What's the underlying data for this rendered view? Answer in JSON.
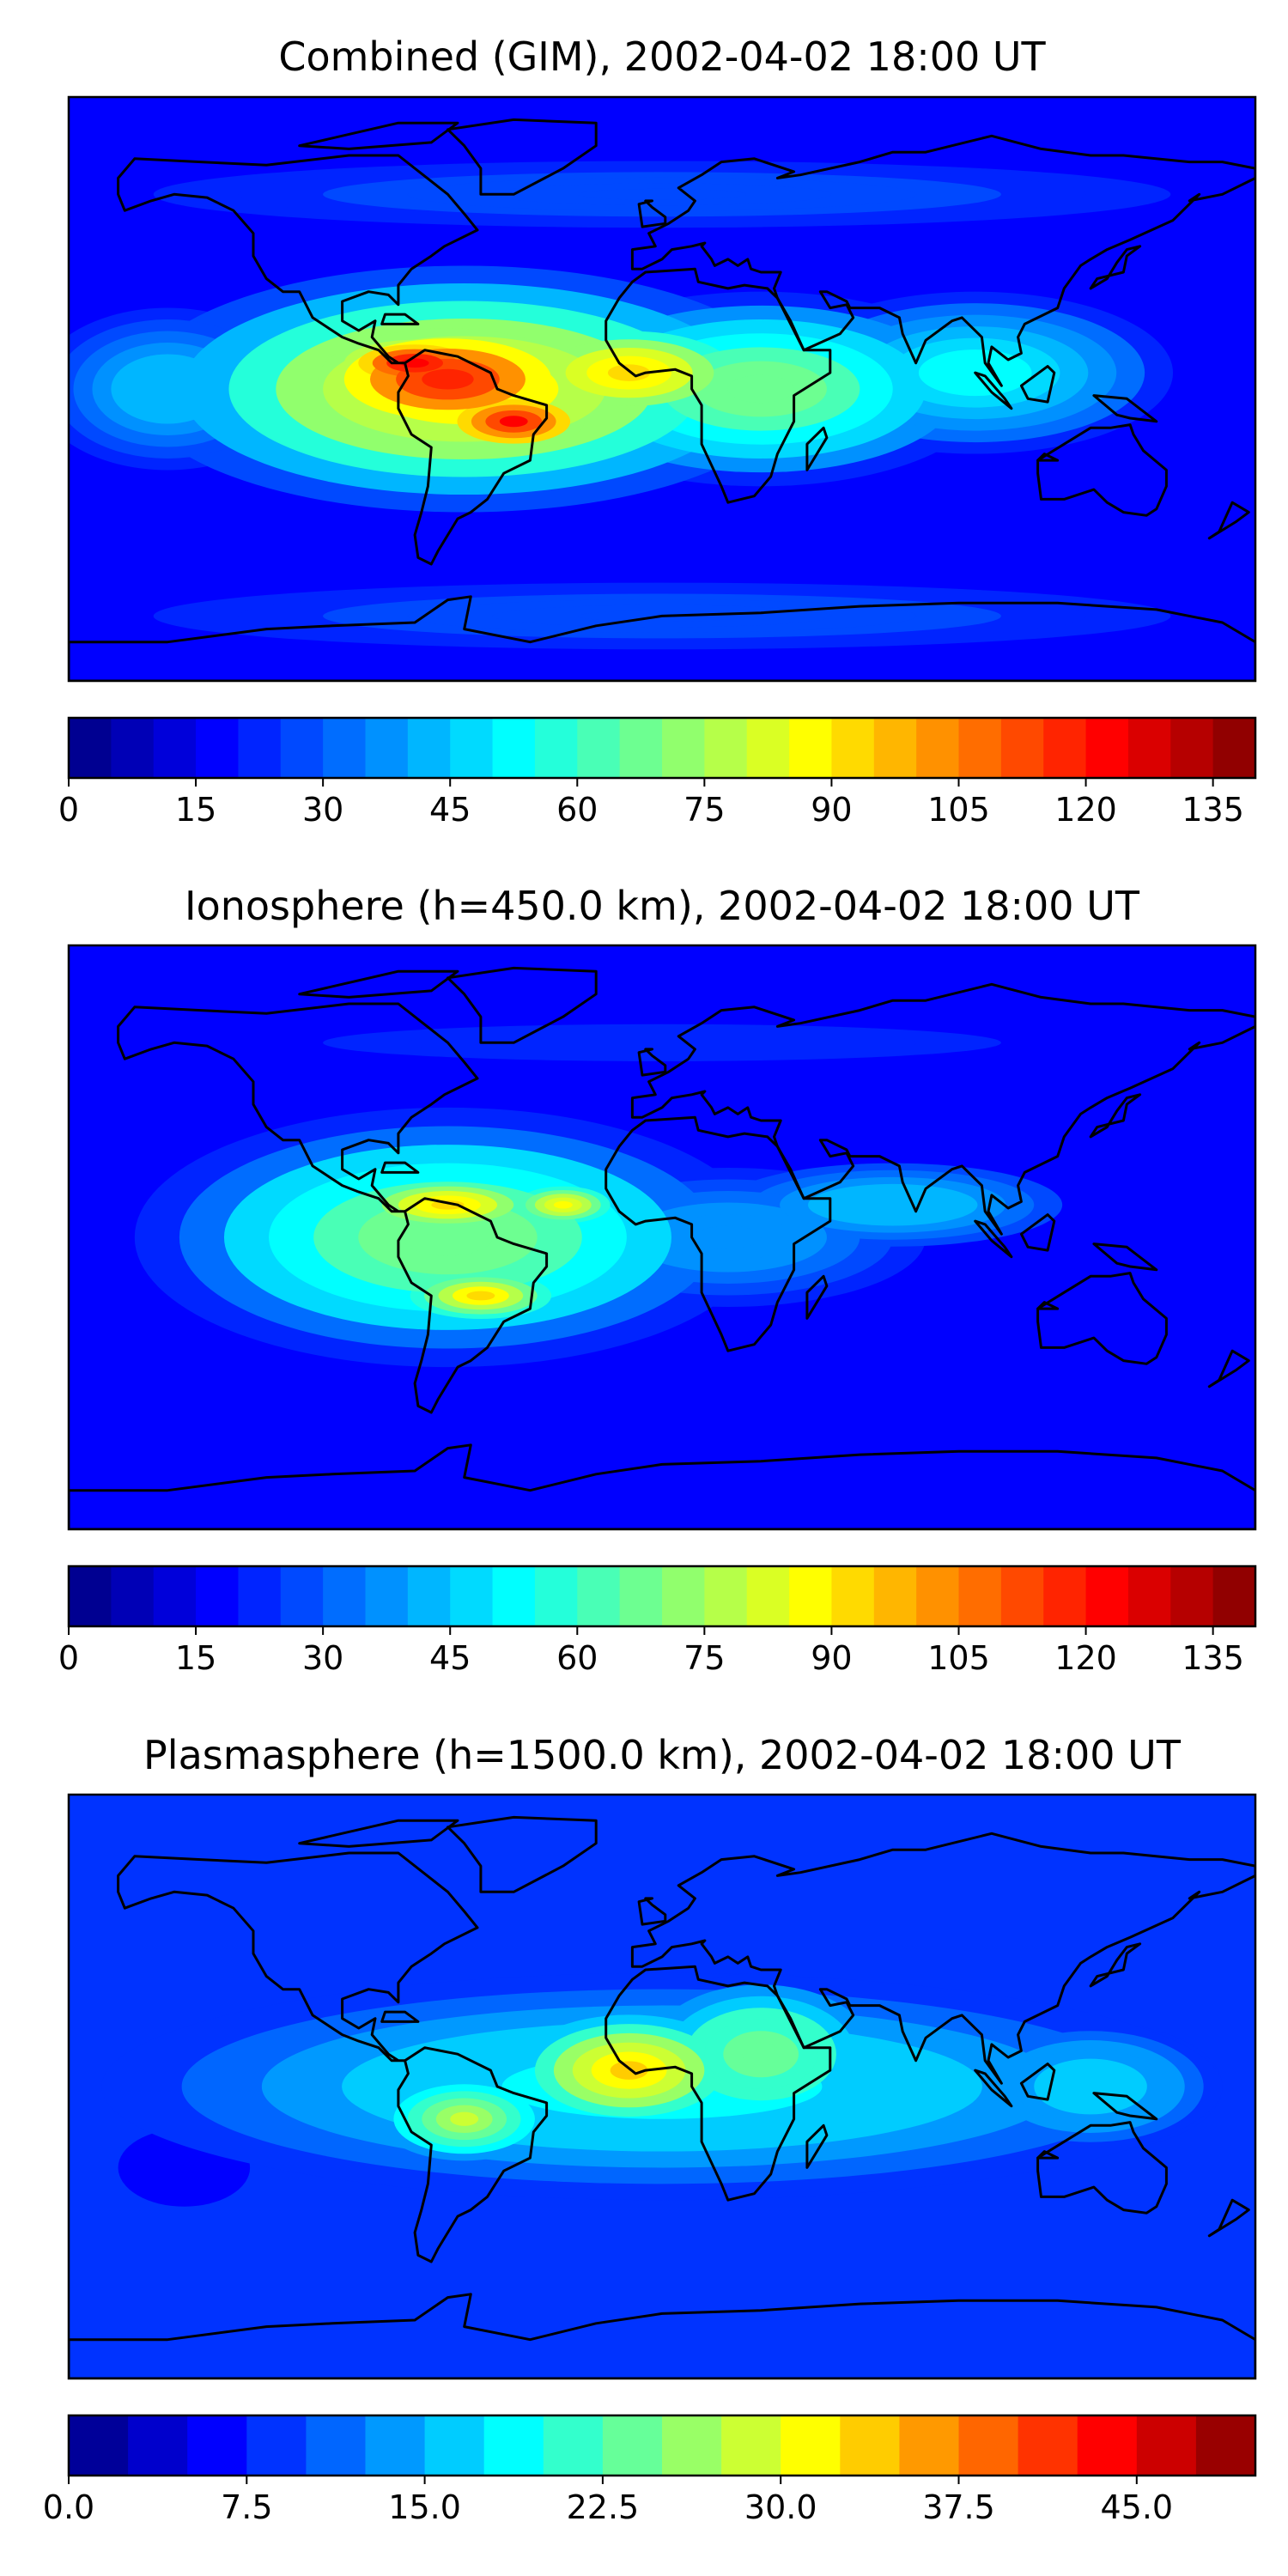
{
  "figure": {
    "panels": [
      {
        "title": "Combined (GIM), 2002-04-02 18:00 UT",
        "colorbar": {
          "ticks": [
            "0",
            "15",
            "30",
            "45",
            "60",
            "75",
            "90",
            "105",
            "120",
            "135"
          ],
          "tick_values": [
            0,
            15,
            30,
            45,
            60,
            75,
            90,
            105,
            120,
            135
          ],
          "vmin": 0,
          "vmax": 140,
          "levels": 28
        },
        "blobs": [
          {
            "lon": -60,
            "lat": 0,
            "rx": 100,
            "ry": 38,
            "v": 92
          },
          {
            "lon": -65,
            "lat": 3,
            "rx": 55,
            "ry": 22,
            "v": 118
          },
          {
            "lon": -45,
            "lat": -10,
            "rx": 30,
            "ry": 12,
            "v": 122
          },
          {
            "lon": -75,
            "lat": 8,
            "rx": 30,
            "ry": 10,
            "v": 125
          },
          {
            "lon": -10,
            "lat": 5,
            "rx": 45,
            "ry": 18,
            "v": 95
          },
          {
            "lon": 30,
            "lat": 0,
            "rx": 70,
            "ry": 30,
            "v": 70
          },
          {
            "lon": 95,
            "lat": 5,
            "rx": 60,
            "ry": 25,
            "v": 55
          },
          {
            "lon": -150,
            "lat": 0,
            "rx": 40,
            "ry": 25,
            "v": 45
          },
          {
            "lon": 0,
            "lat": 60,
            "rx": 180,
            "ry": 12,
            "v": 30
          },
          {
            "lon": 0,
            "lat": -70,
            "rx": 180,
            "ry": 12,
            "v": 28
          }
        ],
        "base": 18
      },
      {
        "title": "Ionosphere  (h=450.0 km), 2002-04-02 18:00 UT",
        "colorbar": {
          "ticks": [
            "0",
            "15",
            "30",
            "45",
            "60",
            "75",
            "90",
            "105",
            "120",
            "135"
          ],
          "tick_values": [
            0,
            15,
            30,
            45,
            60,
            75,
            90,
            105,
            120,
            135
          ],
          "vmin": 0,
          "vmax": 140,
          "levels": 28
        },
        "blobs": [
          {
            "lon": -65,
            "lat": 0,
            "rx": 95,
            "ry": 40,
            "v": 70
          },
          {
            "lon": -65,
            "lat": 10,
            "rx": 35,
            "ry": 10,
            "v": 95
          },
          {
            "lon": -55,
            "lat": -18,
            "rx": 30,
            "ry": 10,
            "v": 92
          },
          {
            "lon": -30,
            "lat": 10,
            "rx": 20,
            "ry": 8,
            "v": 90
          },
          {
            "lon": 20,
            "lat": 0,
            "rx": 70,
            "ry": 25,
            "v": 40
          },
          {
            "lon": 70,
            "lat": 10,
            "rx": 60,
            "ry": 15,
            "v": 45
          },
          {
            "lon": 0,
            "lat": 60,
            "rx": 180,
            "ry": 10,
            "v": 22
          }
        ],
        "base": 16
      },
      {
        "title": "Plasmasphere (h=1500.0 km), 2002-04-02 18:00 UT",
        "colorbar": {
          "ticks": [
            "0.0",
            "7.5",
            "15.0",
            "22.5",
            "30.0",
            "37.5",
            "45.0"
          ],
          "tick_values": [
            0,
            7.5,
            15,
            22.5,
            30,
            37.5,
            45
          ],
          "vmin": 0,
          "vmax": 50,
          "levels": 20
        },
        "blobs": [
          {
            "lon": 0,
            "lat": 0,
            "rx": 170,
            "ry": 35,
            "v": 19
          },
          {
            "lon": -10,
            "lat": 5,
            "rx": 40,
            "ry": 20,
            "v": 33
          },
          {
            "lon": -60,
            "lat": -10,
            "rx": 30,
            "ry": 15,
            "v": 28
          },
          {
            "lon": 30,
            "lat": 10,
            "rx": 40,
            "ry": 25,
            "v": 25
          },
          {
            "lon": 130,
            "lat": 0,
            "rx": 40,
            "ry": 20,
            "v": 17
          },
          {
            "lon": -145,
            "lat": -25,
            "rx": 20,
            "ry": 12,
            "v": -6
          }
        ],
        "base": 8
      }
    ],
    "colors": {
      "coast": "#000000",
      "jet": [
        "#00007f",
        "#0000ff",
        "#007fff",
        "#00ffff",
        "#7fff7f",
        "#ffff00",
        "#ff7f00",
        "#ff0000",
        "#7f0000"
      ]
    }
  }
}
